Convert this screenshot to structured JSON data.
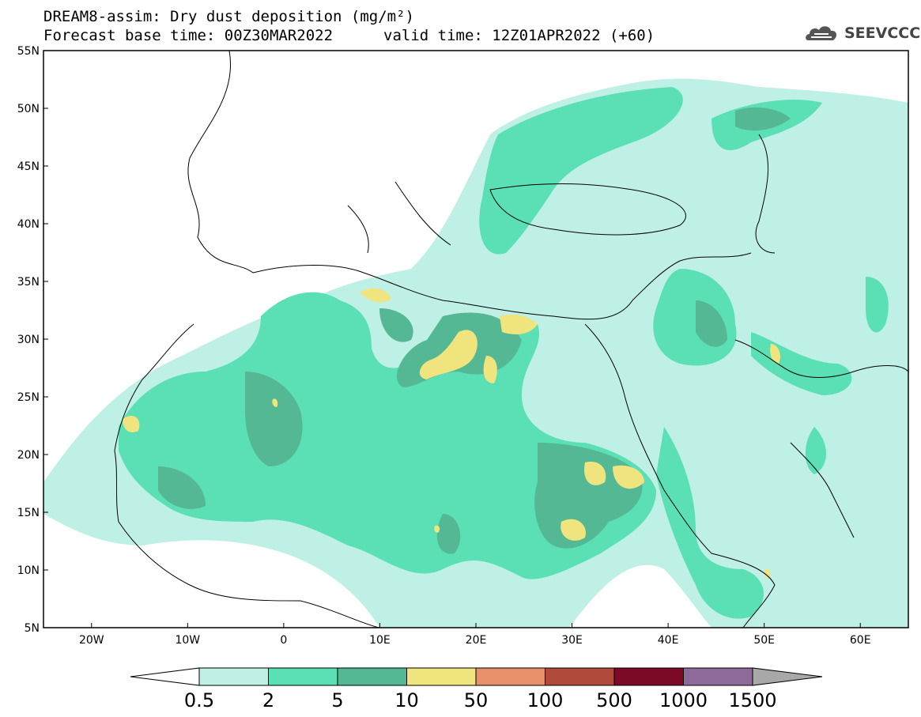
{
  "title": {
    "line1": "DREAM8-assim: Dry dust deposition (mg/m²)",
    "line2_base": "Forecast base time: 00Z30MAR2022",
    "line2_valid": "valid time: 12Z01APR2022 (+60)"
  },
  "logo": {
    "text": "SEEVCCC",
    "icon": "cloud-logo-icon"
  },
  "axes": {
    "lat_labels": [
      "55N",
      "50N",
      "45N",
      "40N",
      "35N",
      "30N",
      "25N",
      "20N",
      "15N",
      "10N",
      "5N"
    ],
    "lon_labels": [
      "20W",
      "10W",
      "0",
      "10E",
      "20E",
      "30E",
      "40E",
      "50E",
      "60E"
    ],
    "lat_range": [
      5,
      55
    ],
    "lon_range": [
      -25,
      65
    ]
  },
  "legend": {
    "labels": [
      "0.5",
      "2",
      "5",
      "10",
      "50",
      "100",
      "500",
      "1000",
      "1500"
    ],
    "colors": [
      "#bff0e6",
      "#5ae0b4",
      "#55b894",
      "#f0e47e",
      "#e8906a",
      "#b04a3a",
      "#7a0a26",
      "#8e6a9a"
    ],
    "under_color": "#ffffff",
    "over_color": "#a8a8a8",
    "units": "mg/m²"
  },
  "colors": {
    "level1": "#bff0e6",
    "level2": "#5ae0b4",
    "level3": "#55b894",
    "level4": "#f0e47e",
    "coast": "#000000"
  }
}
